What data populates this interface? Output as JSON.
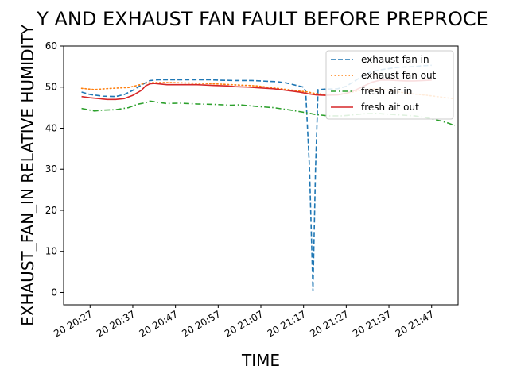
{
  "chart_data": {
    "type": "line",
    "title": "Y AND EXHAUST FAN FAULT BEFORE PREPROCE",
    "xlabel": "TIME",
    "ylabel": "EXHAUST_FAN_IN RELATIVE HUMIDITY",
    "x_ticks": [
      "20 20:27",
      "20 20:37",
      "20 20:47",
      "20 20:57",
      "20 21:07",
      "20 21:17",
      "20 21:27",
      "20 21:37",
      "20 21:47"
    ],
    "x_range_minutes": [
      20.8,
      113.2
    ],
    "ylim": [
      -3,
      60
    ],
    "y_ticks": [
      0,
      10,
      20,
      30,
      40,
      50,
      60
    ],
    "grid": false,
    "legend_position": "top-right",
    "series": [
      {
        "name": "exhaust fan in",
        "color": "#1f77b4",
        "style": "dashed",
        "points": [
          [
            25,
            48.8
          ],
          [
            27,
            48.2
          ],
          [
            30,
            47.8
          ],
          [
            33,
            47.7
          ],
          [
            35,
            48.2
          ],
          [
            37,
            49.2
          ],
          [
            39,
            50.5
          ],
          [
            41,
            51.6
          ],
          [
            43,
            51.8
          ],
          [
            47,
            51.8
          ],
          [
            51,
            51.8
          ],
          [
            55,
            51.8
          ],
          [
            57,
            51.7
          ],
          [
            61,
            51.6
          ],
          [
            65,
            51.6
          ],
          [
            67,
            51.5
          ],
          [
            71,
            51.3
          ],
          [
            73,
            51.0
          ],
          [
            75,
            50.5
          ],
          [
            77,
            50.0
          ],
          [
            77.5,
            49.0
          ],
          [
            78.4,
            30.0
          ],
          [
            79.2,
            0.3
          ],
          [
            79.8,
            30.0
          ],
          [
            80.4,
            49.4
          ],
          [
            82,
            49.5
          ],
          [
            85,
            49.6
          ],
          [
            87,
            50.2
          ],
          [
            89,
            51.5
          ],
          [
            91,
            52.8
          ],
          [
            93,
            53.8
          ],
          [
            95,
            54.2
          ],
          [
            97,
            54.5
          ],
          [
            99,
            54.8
          ],
          [
            101,
            54.9
          ],
          [
            103,
            55.0
          ],
          [
            105,
            55.2
          ],
          [
            107,
            55.3
          ]
        ]
      },
      {
        "name": "exhaust fan out",
        "color": "#ff7f0e",
        "style": "dotted",
        "points": [
          [
            25,
            49.7
          ],
          [
            28,
            49.4
          ],
          [
            32,
            49.7
          ],
          [
            36,
            49.9
          ],
          [
            38,
            50.4
          ],
          [
            40,
            51.0
          ],
          [
            42,
            51.1
          ],
          [
            46,
            51.1
          ],
          [
            50,
            51.0
          ],
          [
            54,
            50.9
          ],
          [
            58,
            50.7
          ],
          [
            62,
            50.5
          ],
          [
            66,
            50.3
          ],
          [
            70,
            49.8
          ],
          [
            74,
            49.3
          ],
          [
            78,
            48.8
          ],
          [
            80,
            48.4
          ],
          [
            82,
            48.2
          ],
          [
            85,
            48.2
          ],
          [
            88,
            48.7
          ],
          [
            91,
            49.4
          ],
          [
            94,
            49.6
          ],
          [
            97,
            49.2
          ],
          [
            100,
            48.7
          ],
          [
            103,
            48.3
          ],
          [
            106,
            48.0
          ],
          [
            109,
            47.6
          ],
          [
            112,
            47.2
          ]
        ]
      },
      {
        "name": "fresh air in",
        "color": "#2ca02c",
        "style": "dashdot",
        "points": [
          [
            25,
            44.8
          ],
          [
            26,
            44.6
          ],
          [
            28,
            44.2
          ],
          [
            30,
            44.4
          ],
          [
            33,
            44.5
          ],
          [
            36,
            45.0
          ],
          [
            38,
            45.8
          ],
          [
            40,
            46.2
          ],
          [
            41,
            46.6
          ],
          [
            43,
            46.3
          ],
          [
            45,
            46.0
          ],
          [
            48,
            46.1
          ],
          [
            52,
            45.9
          ],
          [
            56,
            45.8
          ],
          [
            60,
            45.6
          ],
          [
            62,
            45.7
          ],
          [
            66,
            45.3
          ],
          [
            70,
            45.0
          ],
          [
            74,
            44.4
          ],
          [
            78,
            43.7
          ],
          [
            80,
            43.3
          ],
          [
            83,
            43.0
          ],
          [
            86,
            43.0
          ],
          [
            88,
            43.2
          ],
          [
            91,
            43.5
          ],
          [
            94,
            43.6
          ],
          [
            97,
            43.4
          ],
          [
            100,
            43.2
          ],
          [
            103,
            43.0
          ],
          [
            106,
            42.5
          ],
          [
            109,
            41.8
          ],
          [
            111,
            41.2
          ],
          [
            112.4,
            40.6
          ]
        ]
      },
      {
        "name": "fresh ait out",
        "color": "#d62728",
        "style": "solid",
        "points": [
          [
            25,
            47.7
          ],
          [
            27,
            47.4
          ],
          [
            29,
            47.2
          ],
          [
            31,
            47.0
          ],
          [
            33,
            47.0
          ],
          [
            35,
            47.2
          ],
          [
            37,
            48.0
          ],
          [
            39,
            49.2
          ],
          [
            40,
            50.3
          ],
          [
            41,
            50.8
          ],
          [
            42,
            50.9
          ],
          [
            45,
            50.6
          ],
          [
            48,
            50.6
          ],
          [
            52,
            50.6
          ],
          [
            56,
            50.4
          ],
          [
            59,
            50.3
          ],
          [
            61,
            50.1
          ],
          [
            64,
            50.0
          ],
          [
            67,
            49.8
          ],
          [
            70,
            49.6
          ],
          [
            73,
            49.2
          ],
          [
            76,
            48.8
          ],
          [
            78,
            48.4
          ],
          [
            80,
            48.1
          ],
          [
            82,
            48.0
          ],
          [
            85,
            48.1
          ],
          [
            87,
            48.5
          ],
          [
            89,
            49.2
          ],
          [
            91,
            50.2
          ],
          [
            93,
            51.2
          ],
          [
            95,
            51.7
          ],
          [
            97,
            51.7
          ],
          [
            99,
            51.6
          ],
          [
            101,
            51.5
          ],
          [
            103,
            51.5
          ],
          [
            105,
            51.6
          ],
          [
            107,
            51.7
          ]
        ]
      }
    ]
  }
}
